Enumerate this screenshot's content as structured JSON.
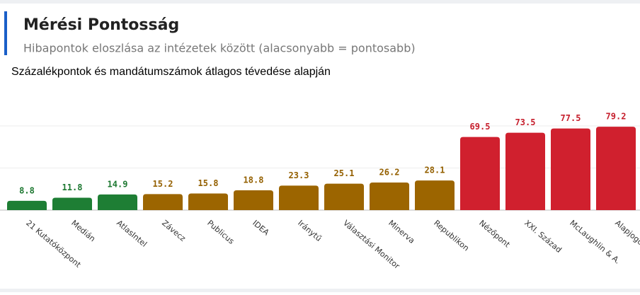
{
  "header": {
    "title": "Mérési Pontosság",
    "subtitle": "Hibapontok eloszlása az intézetek között (alacsonyabb = pontosabb)"
  },
  "chart_data": {
    "type": "bar",
    "title": "Százalékpontok és mandátumszámok átlagos tévedése alapján",
    "categories": [
      "21 Kutatóközpont",
      "Medián",
      "AtlasIntel",
      "Závecz",
      "Publicus",
      "IDEA",
      "Iránytű",
      "Választási Monitor",
      "Minerva",
      "Republikon",
      "Nézőpont",
      "XXI. Század",
      "McLaughlin & A.",
      "Alapjogokért Központ"
    ],
    "values": [
      8.8,
      11.8,
      14.9,
      15.2,
      15.8,
      18.8,
      23.3,
      25.1,
      26.2,
      28.1,
      69.5,
      73.5,
      77.5,
      79.2
    ],
    "colors": [
      "#1e7e34",
      "#1e7e34",
      "#1e7e34",
      "#9c6500",
      "#9c6500",
      "#9c6500",
      "#9c6500",
      "#9c6500",
      "#9c6500",
      "#9c6500",
      "#d0202e",
      "#d0202e",
      "#d0202e",
      "#d0202e"
    ],
    "ylim": [
      0,
      84
    ],
    "yticks": [
      0,
      40,
      80
    ],
    "grid": true
  }
}
